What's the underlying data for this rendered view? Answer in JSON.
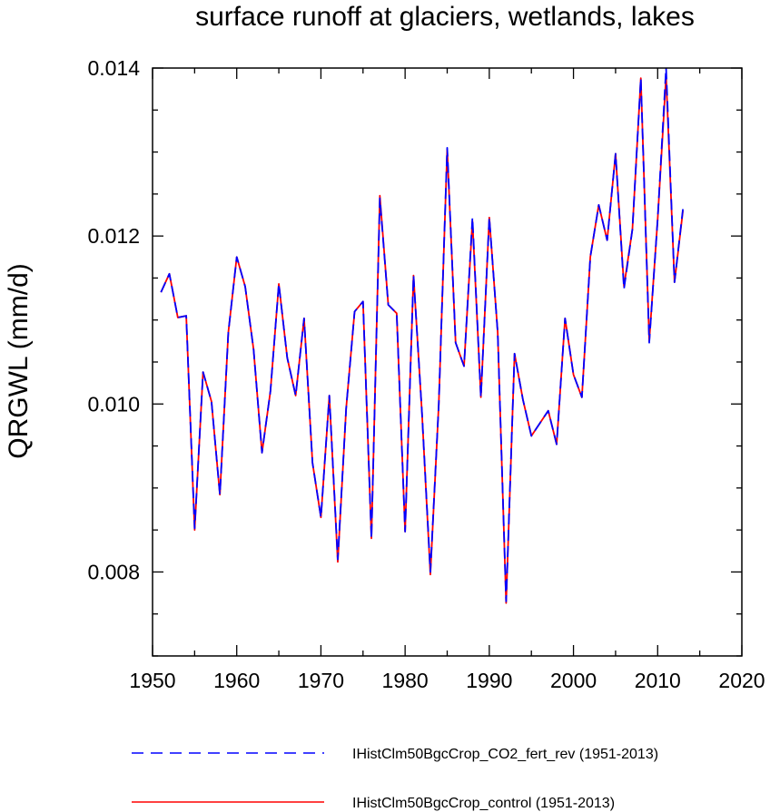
{
  "chart_data": {
    "type": "line",
    "title": "surface runoff at glaciers, wetlands, lakes",
    "xlabel": "",
    "ylabel": "QRGWL  (mm/d)",
    "xlim": [
      1950,
      2020
    ],
    "ylim": [
      0.007,
      0.014
    ],
    "x_ticks": [
      1950,
      1960,
      1970,
      1980,
      1990,
      2000,
      2010,
      2020
    ],
    "x_tick_labels": [
      "1950",
      "1960",
      "1970",
      "1980",
      "1990",
      "2000",
      "2010",
      "2020"
    ],
    "y_ticks": [
      0.008,
      0.01,
      0.012,
      0.014
    ],
    "y_tick_labels": [
      "0.008",
      "0.010",
      "0.012",
      "0.014"
    ],
    "grid": false,
    "legend_position": "bottom",
    "x": [
      1951,
      1952,
      1953,
      1954,
      1955,
      1956,
      1957,
      1958,
      1959,
      1960,
      1961,
      1962,
      1963,
      1964,
      1965,
      1966,
      1967,
      1968,
      1969,
      1970,
      1971,
      1972,
      1973,
      1974,
      1975,
      1976,
      1977,
      1978,
      1979,
      1980,
      1981,
      1982,
      1983,
      1984,
      1985,
      1986,
      1987,
      1988,
      1989,
      1990,
      1991,
      1992,
      1993,
      1994,
      1995,
      1996,
      1997,
      1998,
      1999,
      2000,
      2001,
      2002,
      2003,
      2004,
      2005,
      2006,
      2007,
      2008,
      2009,
      2010,
      2011,
      2012,
      2013
    ],
    "series": [
      {
        "name": "IHistClm50BgcCrop_CO2_fert_rev (1951-2013)",
        "color": "#0000ff",
        "dash": "dashed",
        "values": [
          0.01133,
          0.01155,
          0.01103,
          0.01105,
          0.00852,
          0.01038,
          0.01003,
          0.00892,
          0.01085,
          0.01175,
          0.0114,
          0.01065,
          0.00942,
          0.01015,
          0.01143,
          0.01055,
          0.0101,
          0.01102,
          0.0093,
          0.00865,
          0.0101,
          0.00815,
          0.00995,
          0.0111,
          0.01122,
          0.0084,
          0.01245,
          0.01118,
          0.01108,
          0.00848,
          0.01153,
          0.0099,
          0.008,
          0.01,
          0.01305,
          0.01073,
          0.01045,
          0.01222,
          0.01008,
          0.01222,
          0.01085,
          0.00765,
          0.0106,
          0.01005,
          0.00962,
          0.00977,
          0.00992,
          0.00952,
          0.01102,
          0.01035,
          0.01008,
          0.01175,
          0.01237,
          0.01195,
          0.01298,
          0.01137,
          0.01208,
          0.01388,
          0.01073,
          0.0122,
          0.014,
          0.01145,
          0.01232
        ]
      },
      {
        "name": "IHistClm50BgcCrop_control (1951-2013)",
        "color": "#ff0000",
        "dash": "solid",
        "values": [
          0.01133,
          0.01155,
          0.01103,
          0.01105,
          0.0085,
          0.01038,
          0.01003,
          0.00892,
          0.01085,
          0.01175,
          0.0114,
          0.01065,
          0.00942,
          0.01015,
          0.01143,
          0.01055,
          0.0101,
          0.01102,
          0.0093,
          0.00865,
          0.0101,
          0.00812,
          0.00995,
          0.0111,
          0.01122,
          0.0084,
          0.01248,
          0.01118,
          0.01108,
          0.00848,
          0.01153,
          0.0099,
          0.00797,
          0.01,
          0.01303,
          0.01073,
          0.01045,
          0.01218,
          0.01008,
          0.01222,
          0.01085,
          0.00763,
          0.0106,
          0.01005,
          0.00962,
          0.00977,
          0.00992,
          0.00952,
          0.01102,
          0.01035,
          0.01008,
          0.01175,
          0.01237,
          0.01195,
          0.01298,
          0.0114,
          0.01208,
          0.01388,
          0.01075,
          0.0122,
          0.0139,
          0.01145,
          0.0123
        ]
      }
    ]
  }
}
